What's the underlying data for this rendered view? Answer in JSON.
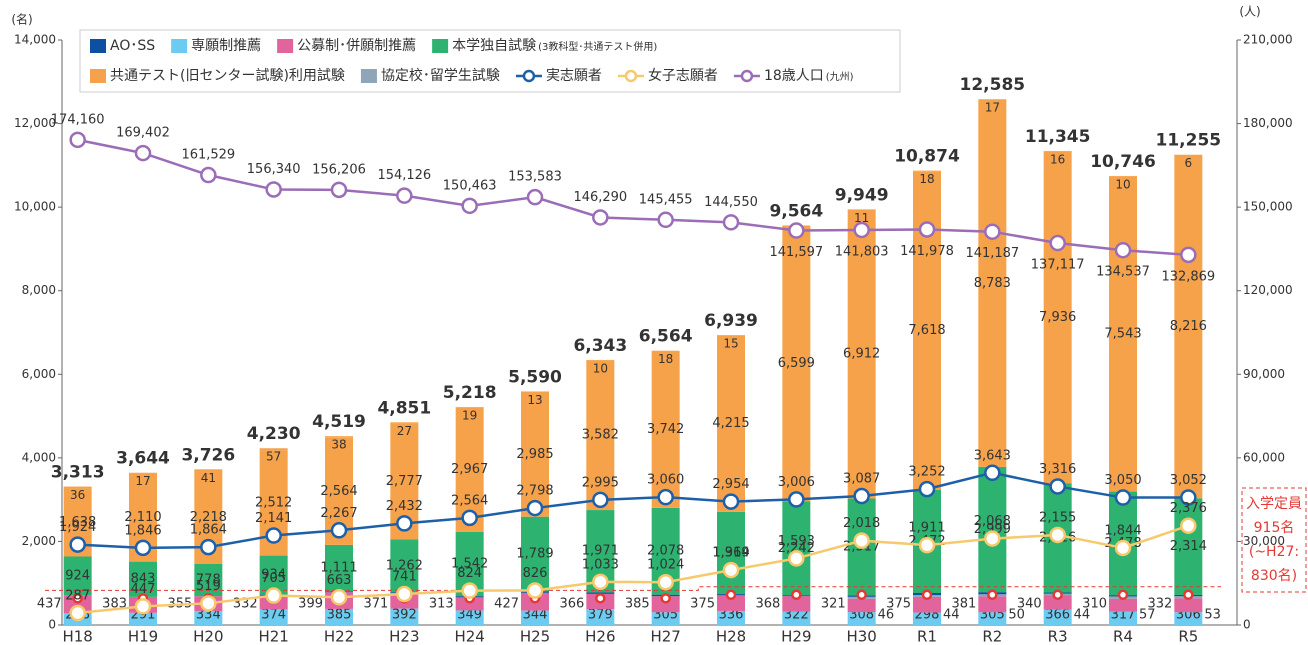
{
  "chart_data": {
    "type": "stacked-bar-line",
    "y_unit": "(名)",
    "y2_unit": "(人)",
    "categories": [
      "H18",
      "H19",
      "H20",
      "H21",
      "H22",
      "H23",
      "H24",
      "H25",
      "H26",
      "H27",
      "H28",
      "H29",
      "H30",
      "R1",
      "R2",
      "R3",
      "R4",
      "R5"
    ],
    "ylim": [
      0,
      14000
    ],
    "yticks": [
      0,
      {
        "value": 2000,
        "label": "2,000"
      },
      {
        "value": 4000,
        "label": "4,000"
      },
      {
        "value": 6000,
        "label": "6,000"
      },
      {
        "value": 8000,
        "label": "8,000"
      },
      {
        "value": 10000,
        "label": "10,000"
      },
      {
        "value": 12000,
        "label": "12,000"
      },
      {
        "value": 14000,
        "label": "14,000"
      }
    ],
    "y2lim": [
      0,
      210000
    ],
    "y2ticks": [
      0,
      {
        "value": 30000,
        "label": "30,000"
      },
      {
        "value": 60000,
        "label": "60,000"
      },
      {
        "value": 90000,
        "label": "90,000"
      },
      {
        "value": 120000,
        "label": "120,000"
      },
      {
        "value": 150000,
        "label": "150,000"
      },
      {
        "value": 180000,
        "label": "180,000"
      },
      {
        "value": 210000,
        "label": "210,000"
      }
    ],
    "series": [
      {
        "name": "AO･SS",
        "color": "#0d4fa0",
        "values": [
          null,
          null,
          null,
          21,
          22,
          22,
          28,
          32,
          35,
          36,
          29,
          24,
          34,
          49,
          50,
          27,
          31,
          28
        ]
      },
      {
        "name": "専願制推薦",
        "color": "#6ccbf0",
        "values": [
          278,
          291,
          334,
          374,
          385,
          392,
          349,
          344,
          379,
          305,
          336,
          322,
          308,
          298,
          305,
          366,
          317,
          306
        ]
      },
      {
        "name": "公募制･併願制推薦",
        "color": "#e2649c",
        "values": [
          437,
          383,
          355,
          332,
          399,
          371,
          313,
          427,
          366,
          385,
          375,
          368,
          321,
          375,
          381,
          340,
          310,
          332
        ]
      },
      {
        "name": "本学独自試験",
        "note": "(3教科型･共通テスト併用)",
        "color": "#2db26f",
        "values": [
          924,
          843,
          778,
          934,
          1111,
          1262,
          1542,
          1789,
          1971,
          2078,
          1969,
          2242,
          2317,
          2472,
          2999,
          2616,
          2478,
          2314
        ],
        "value_labels": [
          "924",
          "843",
          "778",
          "934",
          "1,111",
          "1,262",
          "1,542",
          "1,789",
          "1,971",
          "2,078",
          "1,969",
          "2,242",
          "2,317",
          "2,472",
          "2,999",
          "2,616",
          "2,478",
          "2,314"
        ]
      },
      {
        "name": "共通テスト(旧センター試験)利用試験",
        "color": "#f6a24b",
        "values": [
          1638,
          2110,
          2218,
          2512,
          2564,
          2777,
          2967,
          2985,
          3582,
          3742,
          4215,
          6599,
          6912,
          7618,
          8783,
          7936,
          7543,
          8216
        ],
        "value_labels": [
          "1,638",
          "2,110",
          "2,218",
          "2,512",
          "2,564",
          "2,777",
          "2,967",
          "2,985",
          "3,582",
          "3,742",
          "4,215",
          "6,599",
          "6,912",
          "7,618",
          "8,783",
          "7,936",
          "7,543",
          "8,216"
        ]
      },
      {
        "name": "協定校･留学生試験",
        "color": "#8fa5b8",
        "values": [
          null,
          null,
          null,
          null,
          null,
          null,
          null,
          null,
          null,
          null,
          null,
          null,
          46,
          44,
          50,
          44,
          57,
          53
        ]
      }
    ],
    "extra": {
      "color": "#f6a24b",
      "values": [
        36,
        17,
        41,
        57,
        38,
        27,
        19,
        13,
        10,
        18,
        15,
        9,
        11,
        18,
        17,
        16,
        10,
        6
      ]
    },
    "totals": {
      "values": [
        3313,
        3644,
        3726,
        4230,
        4519,
        4851,
        5218,
        5590,
        6343,
        6564,
        6939,
        9564,
        9949,
        10874,
        12585,
        11345,
        10746,
        11255
      ],
      "value_labels": [
        "3,313",
        "3,644",
        "3,726",
        "4,230",
        "4,519",
        "4,851",
        "5,218",
        "5,590",
        "6,343",
        "6,564",
        "6,939",
        "9,564",
        "9,949",
        "10,874",
        "12,585",
        "11,345",
        "10,746",
        "11,255"
      ]
    },
    "lines": [
      {
        "name": "実志願者",
        "color": "#1d5fa8",
        "values": [
          1924,
          1846,
          1864,
          2141,
          2267,
          2432,
          2564,
          2798,
          2995,
          3060,
          2954,
          3006,
          3087,
          3252,
          3643,
          3316,
          3050,
          3052
        ],
        "value_labels": [
          "1,924",
          "1,846",
          "1,864",
          "2,141",
          "2,267",
          "2,432",
          "2,564",
          "2,798",
          "2,995",
          "3,060",
          "2,954",
          "3,006",
          "3,087",
          "3,252",
          "3,643",
          "3,316",
          "3,050",
          "3,052"
        ]
      },
      {
        "name": "女子志願者",
        "color": "#f7c96c",
        "values": [
          287,
          447,
          519,
          705,
          663,
          741,
          824,
          826,
          1033,
          1024,
          1314,
          1593,
          2018,
          1911,
          2068,
          2155,
          1844,
          2376
        ],
        "value_labels": [
          "287",
          "447",
          "519",
          "705",
          "663",
          "741",
          "824",
          "826",
          "1,033",
          "1,024",
          "1,314",
          "1,593",
          "2,018",
          "1,911",
          "2,068",
          "2,155",
          "1,844",
          "2,376"
        ]
      },
      {
        "name": "18歳人口",
        "note": "(九州)",
        "axis": "y2",
        "color": "#9b6cb7",
        "values": [
          174160,
          169402,
          161529,
          156340,
          156206,
          154126,
          150463,
          153583,
          146290,
          145455,
          144550,
          141597,
          141803,
          141978,
          141187,
          137117,
          134537,
          132869
        ],
        "value_labels": [
          "174,160",
          "169,402",
          "161,529",
          "156,340",
          "156,206",
          "154,126",
          "150,463",
          "153,583",
          "146,290",
          "145,455",
          "144,550",
          "141,597",
          "141,803",
          "141,978",
          "141,187",
          "137,117",
          "134,537",
          "132,869"
        ]
      }
    ],
    "quota": {
      "color": "#e53935",
      "values": [
        830,
        830,
        830,
        830,
        830,
        830,
        830,
        830,
        830,
        830,
        915,
        915,
        915,
        915,
        915,
        915,
        915,
        915
      ]
    },
    "annotation": [
      "入学定員",
      "915名",
      "(~H27:",
      "830名)"
    ]
  }
}
